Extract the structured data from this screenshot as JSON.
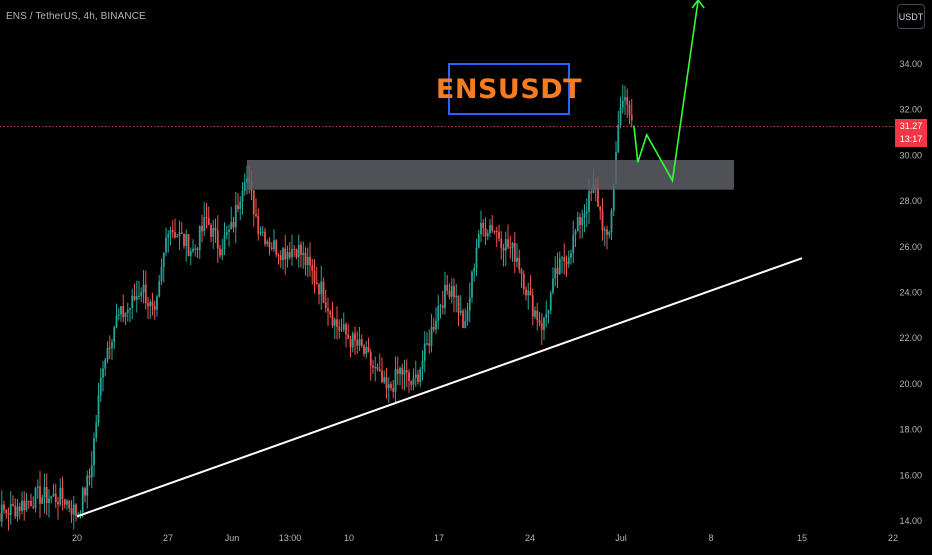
{
  "header": {
    "symbol_line": "ENS / TetherUS, 4h, BINANCE",
    "currency_button": "USDT"
  },
  "annotation": {
    "title": "ENSUSDT"
  },
  "price_tag": {
    "last_price": "31.27",
    "countdown": "13:17",
    "color": "#f23645"
  },
  "colors": {
    "up": "#26a69a",
    "down": "#ef5350",
    "zone": "#5d5f66",
    "trendline": "#ffffff",
    "projection": "#33ff33",
    "title_text": "#f57c20",
    "title_border": "#2962ff"
  },
  "chart_data": {
    "type": "candlestick",
    "title": "",
    "xlabel": "",
    "ylabel": "",
    "x_ticks": [
      "20",
      "27",
      "Jun",
      "13:00",
      "10",
      "17",
      "24",
      "Jul",
      "8",
      "15",
      "22"
    ],
    "y_ticks": [
      "14.00",
      "16.00",
      "18.00",
      "20.00",
      "22.00",
      "24.00",
      "26.00",
      "28.00",
      "30.00",
      "32.00",
      "34.00"
    ],
    "ylim": [
      14,
      36
    ],
    "last_price": 31.27,
    "grid": false,
    "resistance_zone": {
      "low": 28.5,
      "high": 29.8
    },
    "support_trendline": [
      {
        "time": "May 20",
        "price": 14.2
      },
      {
        "time": "Jul 15",
        "price": 25.5
      }
    ],
    "projection_path": [
      {
        "time": "Jul 2",
        "price": 31.3
      },
      {
        "time": "Jul 2",
        "price": 29.7
      },
      {
        "time": "Jul 3",
        "price": 30.9
      },
      {
        "time": "Jul 5",
        "price": 28.9
      },
      {
        "time": "Jul 7",
        "price": 36.8
      }
    ],
    "price_path": [
      [
        "May 13",
        14.2
      ],
      [
        "May 15",
        14.5
      ],
      [
        "May 17",
        15.1
      ],
      [
        "May 19",
        15.0
      ],
      [
        "May 20",
        14.3
      ],
      [
        "May 21",
        16.0
      ],
      [
        "May 22",
        21.0
      ],
      [
        "May 23",
        22.8
      ],
      [
        "May 24",
        23.3
      ],
      [
        "May 25",
        24.3
      ],
      [
        "May 26",
        22.8
      ],
      [
        "May 27",
        27.0
      ],
      [
        "May 28",
        26.4
      ],
      [
        "May 29",
        25.8
      ],
      [
        "May 30",
        27.2
      ],
      [
        "May 31",
        26.0
      ],
      [
        "Jun 1",
        26.8
      ],
      [
        "Jun 2",
        29.3
      ],
      [
        "Jun 3",
        27.0
      ],
      [
        "Jun 4",
        26.1
      ],
      [
        "Jun 5",
        25.8
      ],
      [
        "Jun 6",
        26.0
      ],
      [
        "Jun 7",
        25.0
      ],
      [
        "Jun 8",
        24.0
      ],
      [
        "Jun 9",
        22.6
      ],
      [
        "Jun 10",
        22.0
      ],
      [
        "Jun 11",
        21.5
      ],
      [
        "Jun 12",
        20.6
      ],
      [
        "Jun 13",
        19.6
      ],
      [
        "Jun 14",
        20.6
      ],
      [
        "Jun 15",
        19.9
      ],
      [
        "Jun 16",
        21.5
      ],
      [
        "Jun 17",
        23.5
      ],
      [
        "Jun 18",
        24.4
      ],
      [
        "Jun 19",
        22.3
      ],
      [
        "Jun 20",
        26.6
      ],
      [
        "Jun 21",
        27.0
      ],
      [
        "Jun 22",
        26.2
      ],
      [
        "Jun 23",
        25.6
      ],
      [
        "Jun 24",
        23.6
      ],
      [
        "Jun 25",
        22.5
      ],
      [
        "Jun 26",
        24.8
      ],
      [
        "Jun 27",
        25.8
      ],
      [
        "Jun 28",
        27.4
      ],
      [
        "Jun 29",
        28.6
      ],
      [
        "Jun 30",
        25.9
      ],
      [
        "Jul 1",
        32.7
      ],
      [
        "Jul 2",
        31.27
      ]
    ]
  }
}
